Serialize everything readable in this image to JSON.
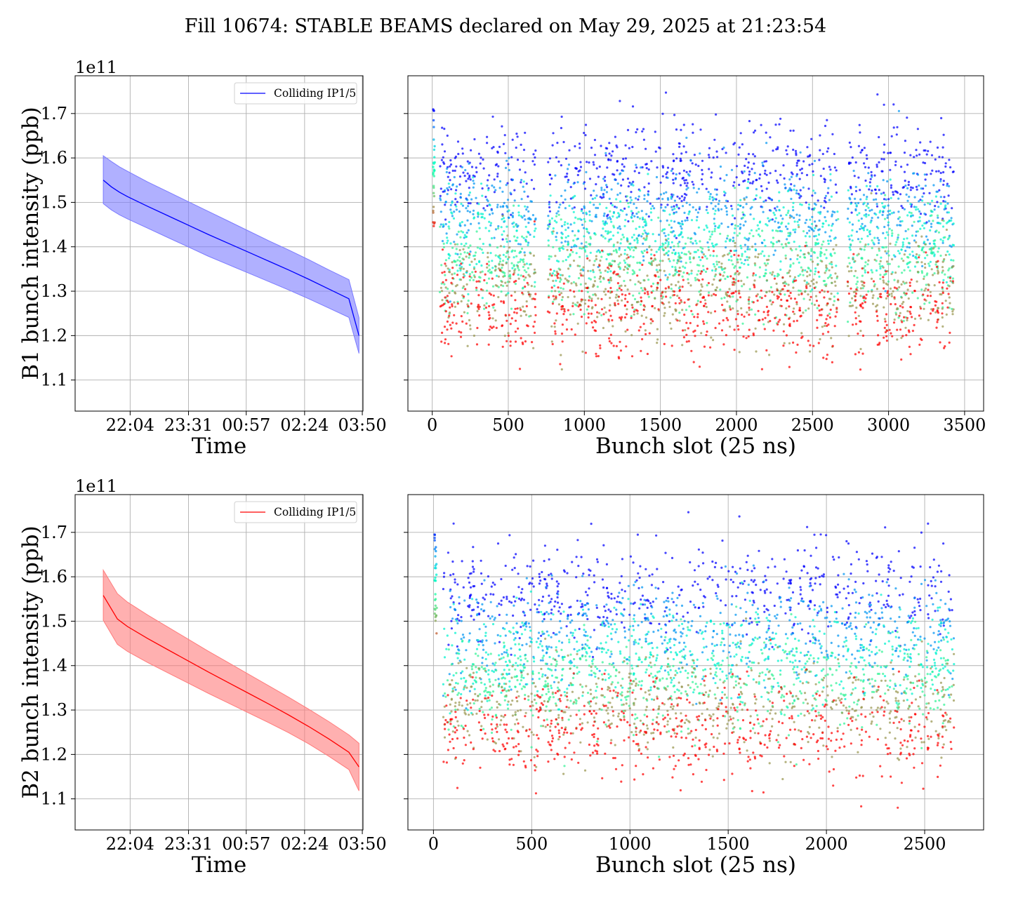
{
  "title": "Fill 10674: STABLE BEAMS declared on May 29, 2025 at 21:23:54",
  "colors": {
    "b1": "#0000ff",
    "b1_band": "#7b7bff",
    "b2": "#ff0000",
    "b2_band": "#ff7b7b"
  },
  "chart_data": [
    {
      "id": "b1-time",
      "type": "line",
      "xlabel": "Time",
      "ylabel": "B1 bunch intensity (ppb)",
      "offset_text": "1e11",
      "x_ticks": [
        "22:04",
        "23:31",
        "00:57",
        "02:24",
        "03:50"
      ],
      "x_tick_hours": [
        22.0667,
        23.5167,
        24.95,
        26.4,
        27.8333
      ],
      "xlim_hours": [
        20.7,
        27.85
      ],
      "y_ticks": [
        "1.1",
        "1.2",
        "1.3",
        "1.4",
        "1.5",
        "1.6",
        "1.7"
      ],
      "ylim": [
        1.03,
        1.785
      ],
      "legend": "Colliding IP1/5",
      "legend_position": "upper right",
      "series": [
        {
          "name": "Colliding IP1/5",
          "x_hours": [
            21.4,
            21.6,
            21.8,
            22.0,
            22.5,
            23.0,
            23.5,
            24.0,
            24.5,
            25.0,
            25.5,
            26.0,
            26.5,
            27.0,
            27.5,
            27.75
          ],
          "mean": [
            1.55,
            1.535,
            1.523,
            1.513,
            1.491,
            1.47,
            1.449,
            1.428,
            1.408,
            1.388,
            1.368,
            1.348,
            1.327,
            1.305,
            1.283,
            1.2
          ],
          "upper": [
            1.605,
            1.592,
            1.58,
            1.57,
            1.546,
            1.524,
            1.502,
            1.48,
            1.458,
            1.436,
            1.414,
            1.393,
            1.371,
            1.348,
            1.326,
            1.24
          ],
          "lower": [
            1.497,
            1.483,
            1.472,
            1.463,
            1.442,
            1.421,
            1.4,
            1.379,
            1.36,
            1.341,
            1.322,
            1.303,
            1.283,
            1.262,
            1.241,
            1.16
          ]
        }
      ]
    },
    {
      "id": "b1-slot",
      "type": "scatter",
      "xlabel": "Bunch slot (25 ns)",
      "x_ticks": [
        0,
        500,
        1000,
        1500,
        2000,
        2500,
        3000,
        3500
      ],
      "xlim": [
        -160,
        3625
      ],
      "ylim": [
        1.03,
        1.785
      ],
      "colormap": "rainbow",
      "slot_range": [
        50,
        3430
      ],
      "value_range": [
        1.12,
        1.75
      ],
      "band_centers": [
        1.57,
        1.47,
        1.42,
        1.36,
        1.31,
        1.26
      ],
      "points_per_band": 700,
      "train_gaps": [
        [
          680,
          760
        ],
        [
          2670,
          2730
        ]
      ]
    },
    {
      "id": "b2-time",
      "type": "line",
      "xlabel": "Time",
      "ylabel": "B2 bunch intensity (ppb)",
      "offset_text": "1e11",
      "x_ticks": [
        "22:04",
        "23:31",
        "00:57",
        "02:24",
        "03:50"
      ],
      "x_tick_hours": [
        22.0667,
        23.5167,
        24.95,
        26.4,
        27.8333
      ],
      "xlim_hours": [
        20.7,
        27.85
      ],
      "y_ticks": [
        "1.1",
        "1.2",
        "1.3",
        "1.4",
        "1.5",
        "1.6",
        "1.7"
      ],
      "ylim": [
        1.03,
        1.785
      ],
      "legend": "Colliding IP1/5",
      "legend_position": "upper right",
      "series": [
        {
          "name": "Colliding IP1/5",
          "x_hours": [
            21.4,
            21.75,
            22.0,
            22.5,
            23.0,
            23.5,
            24.0,
            24.5,
            25.0,
            25.5,
            26.0,
            26.5,
            27.0,
            27.5,
            27.75
          ],
          "mean": [
            1.558,
            1.505,
            1.488,
            1.461,
            1.436,
            1.411,
            1.386,
            1.362,
            1.338,
            1.314,
            1.289,
            1.263,
            1.235,
            1.205,
            1.172
          ],
          "upper": [
            1.615,
            1.562,
            1.543,
            1.514,
            1.487,
            1.46,
            1.433,
            1.407,
            1.381,
            1.355,
            1.329,
            1.302,
            1.274,
            1.244,
            1.225
          ],
          "lower": [
            1.502,
            1.448,
            1.432,
            1.407,
            1.384,
            1.361,
            1.338,
            1.316,
            1.294,
            1.272,
            1.249,
            1.224,
            1.196,
            1.166,
            1.118
          ]
        }
      ]
    },
    {
      "id": "b2-slot",
      "type": "scatter",
      "xlabel": "Bunch slot (25 ns)",
      "x_ticks": [
        0,
        500,
        1000,
        1500,
        2000,
        2500
      ],
      "xlim": [
        -130,
        2800
      ],
      "ylim": [
        1.03,
        1.785
      ],
      "colormap": "rainbow",
      "slot_range": [
        50,
        2650
      ],
      "value_range": [
        1.06,
        1.75
      ],
      "band_centers": [
        1.57,
        1.47,
        1.42,
        1.36,
        1.31,
        1.25
      ],
      "points_per_band": 560,
      "train_gaps": []
    }
  ]
}
